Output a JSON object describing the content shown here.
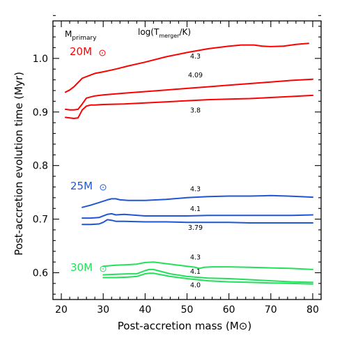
{
  "chart_data": {
    "type": "line",
    "xlabel": "Post-accretion mass (M⊙)",
    "ylabel": "Post-accretion evolution time (Myr)",
    "xlim": [
      18,
      82
    ],
    "ylim": [
      0.55,
      1.07
    ],
    "xticks": [
      20,
      30,
      40,
      50,
      60,
      70,
      80
    ],
    "yticks": [
      0.6,
      0.7,
      0.8,
      0.9,
      1.0
    ],
    "xtick_labels": [
      "20",
      "30",
      "40",
      "50",
      "60",
      "70",
      "80"
    ],
    "ytick_labels": [
      "0.6",
      "0.7",
      "0.8",
      "0.9",
      "1.0"
    ],
    "legend": {
      "primary_label": "M",
      "primary_sub": "primary",
      "temp_label_pre": "log(T",
      "temp_label_sub": "merger",
      "temp_label_post": "/K)"
    },
    "groups": [
      {
        "label": "20M",
        "color": "#ff0000"
      },
      {
        "label": "25M",
        "color": "#1f56d6"
      },
      {
        "label": "30M",
        "color": "#22e05a"
      }
    ],
    "series": [
      {
        "group": 0,
        "label": "4.3",
        "color": "#ff0000",
        "x": [
          21,
          22,
          23,
          24,
          25,
          26,
          27,
          28,
          30,
          33,
          36,
          40,
          45,
          50,
          55,
          60,
          63,
          66,
          68,
          70,
          73,
          76,
          79
        ],
        "y": [
          0.937,
          0.941,
          0.947,
          0.955,
          0.963,
          0.966,
          0.969,
          0.972,
          0.975,
          0.98,
          0.986,
          0.993,
          1.003,
          1.011,
          1.018,
          1.023,
          1.025,
          1.025,
          1.023,
          1.022,
          1.023,
          1.026,
          1.028
        ]
      },
      {
        "group": 0,
        "label": "4.09",
        "color": "#ff0000",
        "x": [
          21,
          22,
          23,
          24,
          25,
          26,
          27,
          28,
          30,
          35,
          40,
          45,
          50,
          55,
          60,
          65,
          70,
          75,
          80
        ],
        "y": [
          0.905,
          0.904,
          0.904,
          0.905,
          0.915,
          0.926,
          0.928,
          0.93,
          0.932,
          0.935,
          0.938,
          0.941,
          0.944,
          0.947,
          0.95,
          0.953,
          0.956,
          0.959,
          0.961
        ]
      },
      {
        "group": 0,
        "label": "3.8",
        "color": "#ff0000",
        "x": [
          21,
          22,
          23,
          24,
          25,
          26,
          27,
          28,
          30,
          35,
          40,
          45,
          50,
          55,
          60,
          65,
          70,
          75,
          80
        ],
        "y": [
          0.89,
          0.889,
          0.888,
          0.889,
          0.904,
          0.911,
          0.913,
          0.913,
          0.914,
          0.915,
          0.917,
          0.919,
          0.921,
          0.923,
          0.924,
          0.925,
          0.927,
          0.929,
          0.931
        ]
      },
      {
        "group": 1,
        "label": "4.3",
        "color": "#1f56d6",
        "x": [
          25,
          27,
          29,
          31,
          32,
          33,
          34,
          36,
          40,
          45,
          50,
          55,
          60,
          65,
          70,
          74,
          77,
          80
        ],
        "y": [
          0.722,
          0.726,
          0.731,
          0.736,
          0.738,
          0.738,
          0.736,
          0.735,
          0.735,
          0.737,
          0.74,
          0.742,
          0.743,
          0.743,
          0.744,
          0.743,
          0.742,
          0.741
        ]
      },
      {
        "group": 1,
        "label": "4.1",
        "color": "#1f56d6",
        "x": [
          25,
          27,
          29,
          31,
          32,
          33,
          35,
          40,
          45,
          50,
          55,
          60,
          65,
          70,
          75,
          80
        ],
        "y": [
          0.702,
          0.702,
          0.703,
          0.709,
          0.71,
          0.708,
          0.709,
          0.706,
          0.706,
          0.706,
          0.707,
          0.707,
          0.707,
          0.707,
          0.707,
          0.708
        ]
      },
      {
        "group": 1,
        "label": "3.79",
        "color": "#1f56d6",
        "x": [
          25,
          27,
          29,
          30,
          31,
          32,
          33,
          35,
          40,
          45,
          50,
          55,
          60,
          65,
          70,
          75,
          80
        ],
        "y": [
          0.69,
          0.69,
          0.691,
          0.694,
          0.699,
          0.698,
          0.696,
          0.696,
          0.695,
          0.695,
          0.694,
          0.694,
          0.694,
          0.693,
          0.693,
          0.693,
          0.693
        ]
      },
      {
        "group": 2,
        "label": "4.3",
        "color": "#22e05a",
        "x": [
          30,
          33,
          36,
          38,
          40,
          42,
          44,
          46,
          48,
          50,
          52,
          53,
          54,
          56,
          60,
          65,
          70,
          75,
          80
        ],
        "y": [
          0.612,
          0.614,
          0.615,
          0.616,
          0.619,
          0.62,
          0.618,
          0.616,
          0.614,
          0.612,
          0.61,
          0.608,
          0.61,
          0.611,
          0.611,
          0.61,
          0.609,
          0.608,
          0.606
        ]
      },
      {
        "group": 2,
        "label": "4.1",
        "color": "#22e05a",
        "x": [
          30,
          33,
          36,
          38,
          40,
          41,
          42,
          44,
          46,
          50,
          55,
          60,
          65,
          70,
          75,
          80
        ],
        "y": [
          0.596,
          0.597,
          0.598,
          0.598,
          0.604,
          0.606,
          0.606,
          0.602,
          0.598,
          0.593,
          0.59,
          0.589,
          0.587,
          0.585,
          0.583,
          0.582
        ]
      },
      {
        "group": 2,
        "label": "4.0",
        "color": "#22e05a",
        "x": [
          30,
          33,
          36,
          38,
          40,
          41,
          42,
          44,
          46,
          50,
          55,
          60,
          65,
          70,
          75,
          80
        ],
        "y": [
          0.591,
          0.591,
          0.592,
          0.593,
          0.598,
          0.599,
          0.599,
          0.596,
          0.593,
          0.589,
          0.585,
          0.583,
          0.582,
          0.581,
          0.58,
          0.579
        ]
      }
    ],
    "curve_labels": [
      {
        "text": "4.3",
        "x": 52,
        "y": 1.0
      },
      {
        "text": "4.09",
        "x": 52,
        "y": 0.965
      },
      {
        "text": "3.8",
        "x": 52,
        "y": 0.899
      },
      {
        "text": "4.3",
        "x": 52,
        "y": 0.752
      },
      {
        "text": "4.1",
        "x": 52,
        "y": 0.715
      },
      {
        "text": "3.79",
        "x": 52,
        "y": 0.68
      },
      {
        "text": "4.3",
        "x": 52,
        "y": 0.625
      },
      {
        "text": "4.1",
        "x": 52,
        "y": 0.598
      },
      {
        "text": "4.0",
        "x": 52,
        "y": 0.573
      }
    ]
  }
}
